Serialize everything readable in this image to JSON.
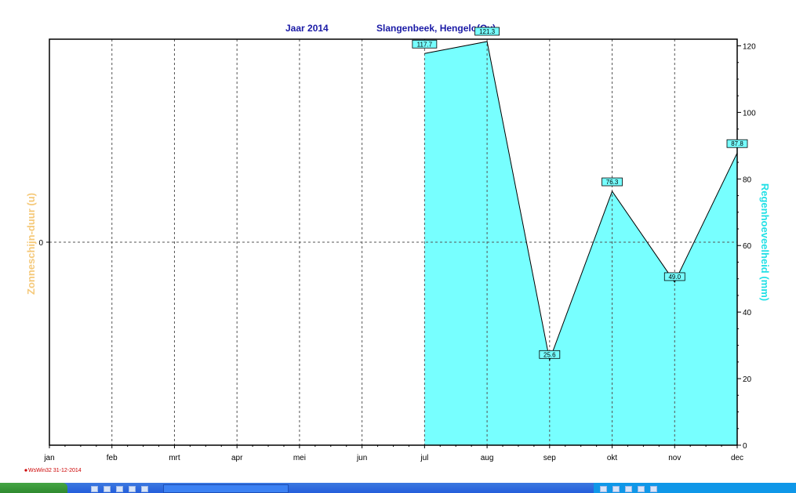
{
  "title_left": "Jaar  2014",
  "title_right": "Slangenbeek, Hengelo(Ov)",
  "left_axis_label": "Zonneschijn-duur  (u)",
  "left_axis_tick": "0",
  "right_axis_label": "Regenhoeveelheid  (mm)",
  "footer": "WsWin32  31-12-2014",
  "colors": {
    "fill": "#77ffff",
    "title": "#1a1aa6",
    "right_axis": "#22e0e6",
    "left_axis": "#f5c97a"
  },
  "chart_data": {
    "type": "area",
    "categories": [
      "jan",
      "feb",
      "mrt",
      "apr",
      "mei",
      "jun",
      "jul",
      "aug",
      "sep",
      "okt",
      "nov",
      "dec"
    ],
    "series": [
      {
        "name": "Regenhoeveelheid",
        "values": [
          null,
          null,
          null,
          null,
          null,
          null,
          117.7,
          121.3,
          25.6,
          76.3,
          49.0,
          87.8
        ]
      }
    ],
    "data_labels": [
      "",
      "",
      "",
      "",
      "",
      "",
      "117.7",
      "121.3",
      "25.6",
      "76.3",
      "49.0",
      "87.8"
    ],
    "y_right": {
      "min": 0,
      "max": 122,
      "ticks": [
        "0",
        "20",
        "40",
        "60",
        "80",
        "100",
        "120"
      ]
    },
    "grid": true
  },
  "taskbar": {
    "start": "",
    "icons": [
      "ie-icon",
      "folder-icon",
      "media-icon",
      "app-icon",
      "app-icon",
      "app-icon"
    ]
  }
}
